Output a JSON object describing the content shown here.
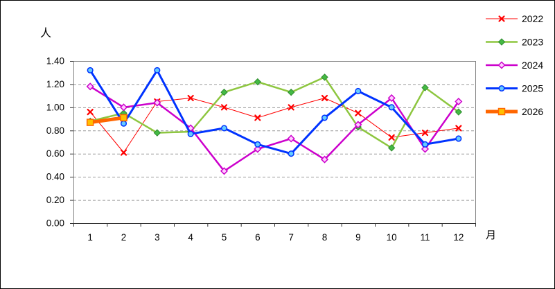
{
  "chart_data": {
    "type": "line",
    "title": "",
    "y_axis_label": "人",
    "x_axis_label": "月",
    "categories": [
      "1",
      "2",
      "3",
      "4",
      "5",
      "6",
      "7",
      "8",
      "9",
      "10",
      "11",
      "12"
    ],
    "ylim": [
      0.0,
      1.4
    ],
    "ytick_step": 0.2,
    "ytick_labels": [
      "1.40",
      "1.20",
      "1.00",
      "0.80",
      "0.60",
      "0.40",
      "0.20",
      "0.00"
    ],
    "grid": "horizontal-dashed",
    "gridline_color": "#999999",
    "plot_border_color": "#808080",
    "axis_color": "#333333",
    "legend_position": "right",
    "series": [
      {
        "name": "2022",
        "color": "#FF0000",
        "marker": "x",
        "marker_fill": "#FF0000",
        "marker_stroke": "#FF0000",
        "line_width": 1,
        "values": [
          0.96,
          0.61,
          1.05,
          1.08,
          1.0,
          0.91,
          1.0,
          1.08,
          0.95,
          0.74,
          0.78,
          0.82
        ]
      },
      {
        "name": "2023",
        "color": "#8DC63F",
        "marker": "diamond",
        "marker_fill": "#44B944",
        "marker_stroke": "#2E8B2E",
        "line_width": 2.5,
        "values": [
          0.88,
          0.95,
          0.78,
          0.79,
          1.13,
          1.22,
          1.13,
          1.26,
          0.83,
          0.65,
          1.17,
          0.96
        ]
      },
      {
        "name": "2024",
        "color": "#CC00CC",
        "marker": "open-diamond",
        "marker_fill": "#FFCCFF",
        "marker_stroke": "#CC00CC",
        "line_width": 2.5,
        "values": [
          1.18,
          1.0,
          1.04,
          0.82,
          0.45,
          0.64,
          0.73,
          0.55,
          0.85,
          1.08,
          0.64,
          1.05
        ]
      },
      {
        "name": "2025",
        "color": "#0033FF",
        "marker": "circle",
        "marker_fill": "#66CCFF",
        "marker_stroke": "#0033FF",
        "line_width": 3,
        "values": [
          1.32,
          0.86,
          1.32,
          0.77,
          0.82,
          0.68,
          0.6,
          0.91,
          1.14,
          1.0,
          0.68,
          0.73
        ]
      },
      {
        "name": "2026",
        "color": "#FF6600",
        "marker": "square",
        "marker_fill": "#FFC000",
        "marker_stroke": "#FF6600",
        "line_width": 5,
        "values": [
          0.87,
          0.91,
          null,
          null,
          null,
          null,
          null,
          null,
          null,
          null,
          null,
          null
        ]
      }
    ]
  }
}
